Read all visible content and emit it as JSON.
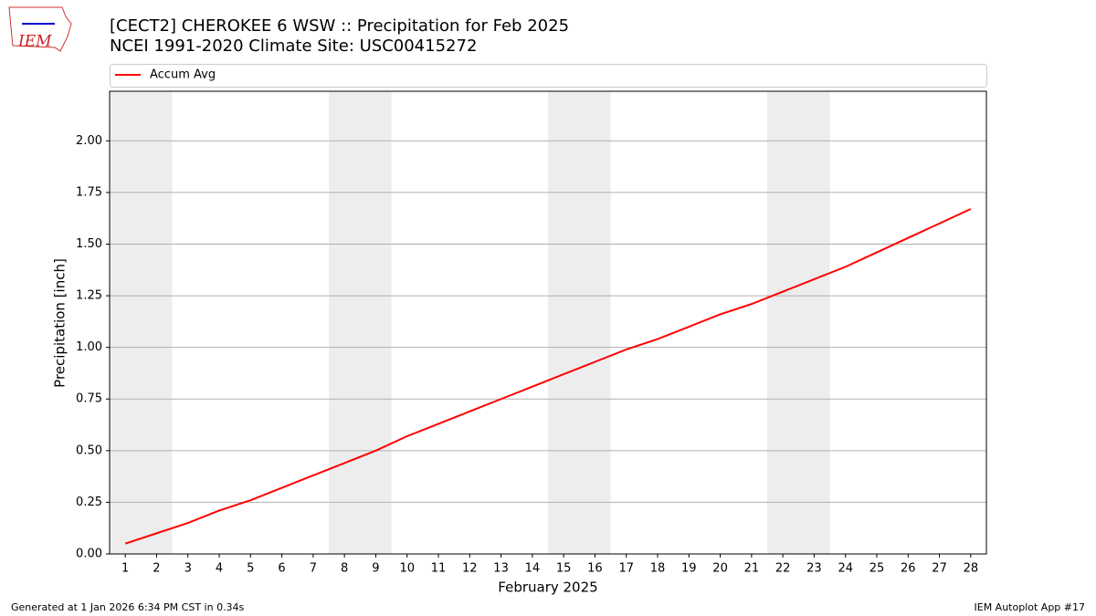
{
  "logo_text": "IEM",
  "footer_left": "Generated at 1 Jan 2026 6:34 PM CST in 0.34s",
  "footer_right": "IEM Autoplot App #17",
  "chart_data": {
    "type": "line",
    "title": "[CECT2] CHEROKEE 6 WSW :: Precipitation for Feb 2025",
    "subtitle": "NCEI 1991-2020 Climate Site: USC00415272",
    "xlabel": "February 2025",
    "ylabel": "Precipitation [inch]",
    "x": [
      1,
      2,
      3,
      4,
      5,
      6,
      7,
      8,
      9,
      10,
      11,
      12,
      13,
      14,
      15,
      16,
      17,
      18,
      19,
      20,
      21,
      22,
      23,
      24,
      25,
      26,
      27,
      28
    ],
    "series": [
      {
        "name": "Accum Avg",
        "color": "#ff0000",
        "values": [
          0.05,
          0.1,
          0.15,
          0.21,
          0.26,
          0.32,
          0.38,
          0.44,
          0.5,
          0.57,
          0.63,
          0.69,
          0.75,
          0.81,
          0.87,
          0.93,
          0.99,
          1.04,
          1.1,
          1.16,
          1.21,
          1.27,
          1.33,
          1.39,
          1.46,
          1.53,
          1.6,
          1.67
        ]
      }
    ],
    "xlim": [
      0.5,
      28.5
    ],
    "ylim": [
      0,
      2.24
    ],
    "xticks": [
      1,
      2,
      3,
      4,
      5,
      6,
      7,
      8,
      9,
      10,
      11,
      12,
      13,
      14,
      15,
      16,
      17,
      18,
      19,
      20,
      21,
      22,
      23,
      24,
      25,
      26,
      27,
      28
    ],
    "yticks": [
      {
        "value": 0,
        "label": "0.00"
      },
      {
        "value": 0.25,
        "label": "0.25"
      },
      {
        "value": 0.5,
        "label": "0.50"
      },
      {
        "value": 0.75,
        "label": "0.75"
      },
      {
        "value": 1,
        "label": "1.00"
      },
      {
        "value": 1.25,
        "label": "1.25"
      },
      {
        "value": 1.5,
        "label": "1.50"
      },
      {
        "value": 1.75,
        "label": "1.75"
      },
      {
        "value": 2,
        "label": "2.00"
      }
    ],
    "grid": true,
    "weekend_spans": [
      [
        0.5,
        2.5
      ],
      [
        7.5,
        9.5
      ],
      [
        14.5,
        16.5
      ],
      [
        21.5,
        23.5
      ]
    ],
    "span_color": "#ededed",
    "legend": "top"
  }
}
